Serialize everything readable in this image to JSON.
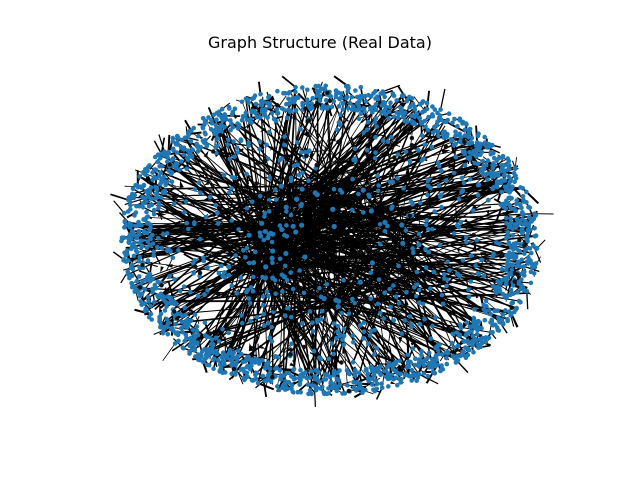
{
  "figure": {
    "title": "Graph Structure (Real Data)"
  },
  "graph": {
    "layout": "spring",
    "directed": true,
    "node_color": "#1f77b4",
    "edge_color": "#000000",
    "background": "#ffffff"
  }
}
